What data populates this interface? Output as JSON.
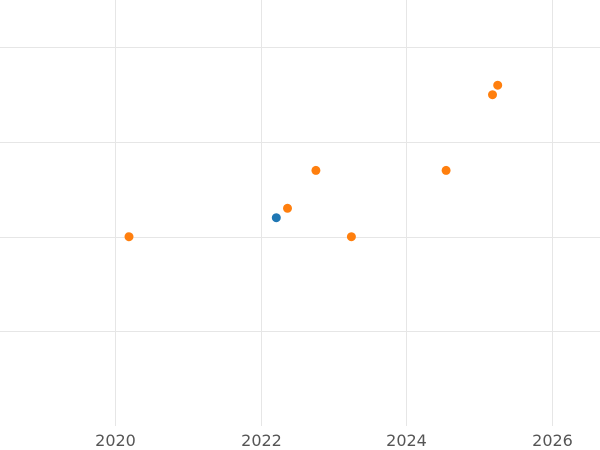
{
  "chart_data": {
    "type": "scatter",
    "title": "",
    "xlabel": "",
    "ylabel": "",
    "grid": true,
    "legend": "none",
    "xlim": [
      "2018-06-01",
      "2026-09-01"
    ],
    "ylim": [
      0,
      4.5
    ],
    "x_ticks": [
      "2020-01-01",
      "2022-01-01",
      "2024-01-01",
      "2026-01-01"
    ],
    "x_tick_labels": [
      "2020",
      "2022",
      "2024",
      "2026"
    ],
    "y_gridlines": [
      1,
      2,
      3,
      4
    ],
    "y_tick_labels": [],
    "series": [
      {
        "color": "#1f77b4",
        "points": [
          {
            "x": "2022-03-20",
            "y": 2.2
          }
        ]
      },
      {
        "color": "#ff7f0e",
        "points": [
          {
            "x": "2020-03-10",
            "y": 2.0
          },
          {
            "x": "2022-05-15",
            "y": 2.3
          },
          {
            "x": "2022-10-05",
            "y": 2.7
          },
          {
            "x": "2023-04-01",
            "y": 2.0
          },
          {
            "x": "2024-07-20",
            "y": 2.7
          },
          {
            "x": "2025-03-10",
            "y": 3.5
          },
          {
            "x": "2025-04-05",
            "y": 3.6
          }
        ]
      }
    ]
  }
}
